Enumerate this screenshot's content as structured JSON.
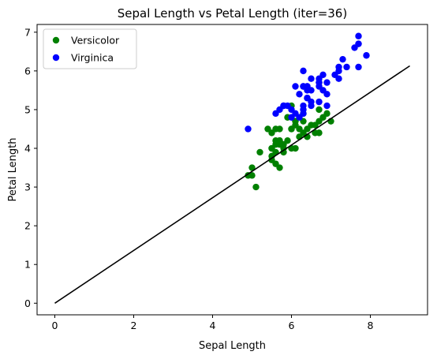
{
  "chart_data": {
    "type": "scatter",
    "title": "Sepal Length vs Petal Length (iter=36)",
    "xlabel": "Sepal Length",
    "ylabel": "Petal Length",
    "xlim": [
      -0.45,
      9.45
    ],
    "ylim": [
      -0.3,
      7.2
    ],
    "xticks": [
      0,
      2,
      4,
      6,
      8
    ],
    "yticks": [
      0,
      1,
      2,
      3,
      4,
      5,
      6,
      7
    ],
    "grid": false,
    "legend_position": "top-left",
    "series": [
      {
        "name": "Versicolor",
        "color": "#008000",
        "points": [
          [
            7.0,
            4.7
          ],
          [
            6.4,
            4.5
          ],
          [
            6.9,
            4.9
          ],
          [
            5.5,
            4.0
          ],
          [
            6.5,
            4.6
          ],
          [
            5.7,
            4.5
          ],
          [
            6.3,
            4.7
          ],
          [
            4.9,
            3.3
          ],
          [
            6.6,
            4.6
          ],
          [
            5.2,
            3.9
          ],
          [
            5.0,
            3.5
          ],
          [
            5.9,
            4.2
          ],
          [
            6.0,
            4.0
          ],
          [
            6.1,
            4.7
          ],
          [
            5.6,
            3.6
          ],
          [
            6.7,
            4.4
          ],
          [
            5.6,
            4.5
          ],
          [
            5.8,
            4.1
          ],
          [
            6.2,
            4.5
          ],
          [
            5.6,
            3.9
          ],
          [
            5.9,
            4.8
          ],
          [
            6.1,
            4.0
          ],
          [
            6.3,
            4.9
          ],
          [
            6.1,
            4.7
          ],
          [
            6.4,
            4.3
          ],
          [
            6.6,
            4.4
          ],
          [
            6.8,
            4.8
          ],
          [
            6.7,
            5.0
          ],
          [
            6.0,
            4.5
          ],
          [
            5.7,
            3.5
          ],
          [
            5.5,
            3.8
          ],
          [
            5.5,
            3.7
          ],
          [
            5.8,
            3.9
          ],
          [
            6.0,
            5.1
          ],
          [
            5.4,
            4.5
          ],
          [
            6.0,
            4.5
          ],
          [
            6.7,
            4.7
          ],
          [
            6.3,
            4.4
          ],
          [
            5.6,
            4.1
          ],
          [
            5.5,
            4.0
          ],
          [
            5.5,
            4.4
          ],
          [
            6.1,
            4.6
          ],
          [
            5.8,
            4.0
          ],
          [
            5.0,
            3.3
          ],
          [
            5.6,
            4.2
          ],
          [
            5.7,
            4.2
          ],
          [
            5.7,
            4.2
          ],
          [
            6.2,
            4.3
          ],
          [
            5.1,
            3.0
          ],
          [
            5.7,
            4.1
          ]
        ]
      },
      {
        "name": "Virginica",
        "color": "#0000ff",
        "points": [
          [
            6.3,
            6.0
          ],
          [
            5.8,
            5.1
          ],
          [
            7.1,
            5.9
          ],
          [
            6.3,
            5.6
          ],
          [
            6.5,
            5.8
          ],
          [
            7.6,
            6.6
          ],
          [
            4.9,
            4.5
          ],
          [
            7.3,
            6.3
          ],
          [
            6.7,
            5.8
          ],
          [
            7.2,
            6.1
          ],
          [
            6.5,
            5.1
          ],
          [
            6.4,
            5.3
          ],
          [
            6.8,
            5.5
          ],
          [
            5.7,
            5.0
          ],
          [
            5.8,
            5.1
          ],
          [
            6.4,
            5.3
          ],
          [
            6.5,
            5.5
          ],
          [
            7.7,
            6.7
          ],
          [
            7.7,
            6.9
          ],
          [
            6.0,
            5.0
          ],
          [
            6.9,
            5.7
          ],
          [
            5.6,
            4.9
          ],
          [
            7.7,
            6.7
          ],
          [
            6.3,
            4.9
          ],
          [
            6.7,
            5.7
          ],
          [
            7.2,
            6.0
          ],
          [
            6.2,
            4.8
          ],
          [
            6.1,
            4.9
          ],
          [
            6.4,
            5.6
          ],
          [
            7.2,
            5.8
          ],
          [
            7.4,
            6.1
          ],
          [
            7.9,
            6.4
          ],
          [
            6.4,
            5.6
          ],
          [
            6.3,
            5.1
          ],
          [
            6.1,
            5.6
          ],
          [
            7.7,
            6.1
          ],
          [
            6.3,
            5.6
          ],
          [
            6.4,
            5.5
          ],
          [
            6.0,
            4.8
          ],
          [
            6.9,
            5.4
          ],
          [
            6.7,
            5.6
          ],
          [
            6.9,
            5.1
          ],
          [
            5.8,
            5.1
          ],
          [
            6.8,
            5.9
          ],
          [
            6.7,
            5.7
          ],
          [
            6.7,
            5.2
          ],
          [
            6.3,
            5.0
          ],
          [
            6.5,
            5.2
          ],
          [
            6.2,
            5.4
          ],
          [
            5.9,
            5.1
          ]
        ]
      }
    ],
    "line": {
      "color": "#000000",
      "points": [
        [
          0,
          0
        ],
        [
          9,
          6.13
        ]
      ]
    }
  }
}
